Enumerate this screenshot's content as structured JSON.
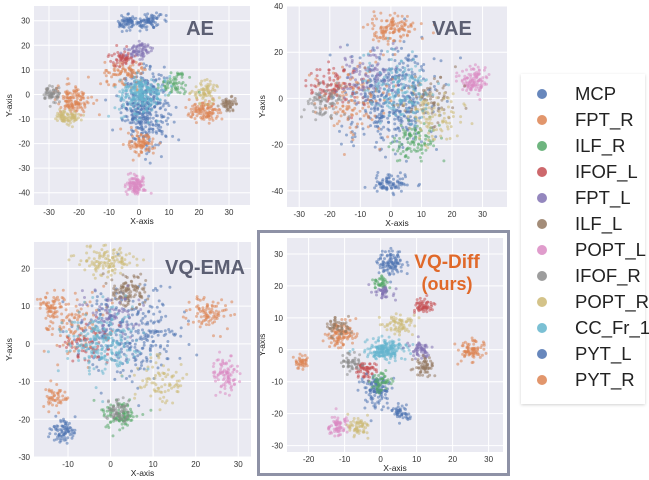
{
  "legend": {
    "entries": [
      {
        "label": "MCP",
        "color": "#4c72b0"
      },
      {
        "label": "FPT_R",
        "color": "#dd8452"
      },
      {
        "label": "ILF_R",
        "color": "#55a868"
      },
      {
        "label": "IFOF_L",
        "color": "#c44e52"
      },
      {
        "label": "FPT_L",
        "color": "#8172b3"
      },
      {
        "label": "ILF_L",
        "color": "#937860"
      },
      {
        "label": "POPT_L",
        "color": "#da8bc3"
      },
      {
        "label": "IFOF_R",
        "color": "#8c8c8c"
      },
      {
        "label": "POPT_R",
        "color": "#ccb974"
      },
      {
        "label": "CC_Fr_1",
        "color": "#64b5cd"
      },
      {
        "label": "PYT_L",
        "color": "#4c72b0"
      },
      {
        "label": "PYT_R",
        "color": "#dd8452"
      }
    ]
  },
  "chart_data": [
    {
      "type": "scatter",
      "title": "AE",
      "title_color": "#5c5f73",
      "xlabel": "X-axis",
      "ylabel": "Y-axis",
      "xlim": [
        -35,
        37
      ],
      "ylim": [
        -45,
        36
      ],
      "xticks": [
        -30,
        -20,
        -10,
        0,
        10,
        20,
        30
      ],
      "yticks": [
        -40,
        -30,
        -20,
        -10,
        0,
        10,
        20,
        30
      ],
      "grid": true,
      "clusters": [
        {
          "series": "MCP",
          "cx": 2,
          "cy": -5,
          "sx": 5,
          "sy": 10,
          "n": 380
        },
        {
          "series": "MCP",
          "cx": -4,
          "cy": 29,
          "sx": 2,
          "sy": 2,
          "n": 60
        },
        {
          "series": "PYT_L",
          "cx": 3,
          "cy": 30,
          "sx": 3,
          "sy": 2.5,
          "n": 80
        },
        {
          "series": "FPT_R",
          "cx": -22,
          "cy": -2,
          "sx": 4,
          "sy": 4,
          "n": 130
        },
        {
          "series": "FPT_R",
          "cx": 22,
          "cy": -7,
          "sx": 4,
          "sy": 3,
          "n": 110
        },
        {
          "series": "FPT_R",
          "cx": -5,
          "cy": 8,
          "sx": 5,
          "sy": 4,
          "n": 90
        },
        {
          "series": "PYT_R",
          "cx": 1,
          "cy": -20,
          "sx": 3,
          "sy": 3,
          "n": 90
        },
        {
          "series": "POPT_L",
          "cx": -1,
          "cy": -37,
          "sx": 2,
          "sy": 2.5,
          "n": 110
        },
        {
          "series": "POPT_R",
          "cx": -24,
          "cy": -9,
          "sx": 3,
          "sy": 2,
          "n": 80
        },
        {
          "series": "POPT_R",
          "cx": 22,
          "cy": 1,
          "sx": 3,
          "sy": 3,
          "n": 70
        },
        {
          "series": "ILF_L",
          "cx": 30,
          "cy": -4,
          "sx": 2,
          "sy": 2,
          "n": 50
        },
        {
          "series": "ILF_R",
          "cx": 12,
          "cy": 4,
          "sx": 3,
          "sy": 3,
          "n": 60
        },
        {
          "series": "IFOF_L",
          "cx": -5,
          "cy": 15,
          "sx": 3,
          "sy": 2,
          "n": 60
        },
        {
          "series": "FPT_L",
          "cx": 0,
          "cy": 18,
          "sx": 3,
          "sy": 2,
          "n": 70
        },
        {
          "series": "IFOF_R",
          "cx": -29,
          "cy": 0,
          "sx": 2,
          "sy": 2,
          "n": 60
        },
        {
          "series": "CC_Fr_1",
          "cx": 1,
          "cy": 0,
          "sx": 5,
          "sy": 5,
          "n": 220
        }
      ]
    },
    {
      "type": "scatter",
      "title": "VAE",
      "title_color": "#5c5f73",
      "xlabel": "X-axis",
      "ylabel": "Y-axis",
      "xlim": [
        -34,
        38
      ],
      "ylim": [
        -47,
        40
      ],
      "xticks": [
        -30,
        -20,
        -10,
        0,
        10,
        20,
        30
      ],
      "yticks": [
        -40,
        -20,
        0,
        20,
        40
      ],
      "grid": true,
      "clusters": [
        {
          "series": "MCP",
          "cx": 0,
          "cy": 0,
          "sx": 10,
          "sy": 14,
          "n": 420
        },
        {
          "series": "MCP",
          "cx": 0,
          "cy": -37,
          "sx": 4,
          "sy": 3,
          "n": 80
        },
        {
          "series": "FPT_R",
          "cx": 0,
          "cy": 30,
          "sx": 5,
          "sy": 4,
          "n": 120
        },
        {
          "series": "FPT_R",
          "cx": -12,
          "cy": 0,
          "sx": 8,
          "sy": 10,
          "n": 140
        },
        {
          "series": "POPT_L",
          "cx": 27,
          "cy": 8,
          "sx": 3,
          "sy": 4,
          "n": 110
        },
        {
          "series": "ILF_R",
          "cx": 8,
          "cy": -18,
          "sx": 5,
          "sy": 5,
          "n": 100
        },
        {
          "series": "IFOF_L",
          "cx": -18,
          "cy": 5,
          "sx": 6,
          "sy": 6,
          "n": 90
        },
        {
          "series": "FPT_L",
          "cx": -8,
          "cy": 10,
          "sx": 6,
          "sy": 8,
          "n": 90
        },
        {
          "series": "ILF_L",
          "cx": 12,
          "cy": 0,
          "sx": 6,
          "sy": 7,
          "n": 80
        },
        {
          "series": "IFOF_R",
          "cx": -22,
          "cy": -2,
          "sx": 5,
          "sy": 6,
          "n": 80
        },
        {
          "series": "POPT_R",
          "cx": 14,
          "cy": -8,
          "sx": 6,
          "sy": 8,
          "n": 100
        },
        {
          "series": "CC_Fr_1",
          "cx": 3,
          "cy": 5,
          "sx": 8,
          "sy": 10,
          "n": 150
        }
      ]
    },
    {
      "type": "scatter",
      "title": "VQ-EMA",
      "title_color": "#5c5f73",
      "xlabel": "X-axis",
      "ylabel": "Y-axis",
      "xlim": [
        -18,
        33
      ],
      "ylim": [
        -30,
        27
      ],
      "xticks": [
        -10,
        0,
        10,
        20,
        30
      ],
      "yticks": [
        -30,
        -20,
        -10,
        0,
        10,
        20
      ],
      "grid": true,
      "clusters": [
        {
          "series": "MCP",
          "cx": 5,
          "cy": 3,
          "sx": 8,
          "sy": 8,
          "n": 300
        },
        {
          "series": "MCP",
          "cx": -11,
          "cy": -23,
          "sx": 2,
          "sy": 2,
          "n": 80
        },
        {
          "series": "POPT_R",
          "cx": -1,
          "cy": 22,
          "sx": 4,
          "sy": 2.5,
          "n": 120
        },
        {
          "series": "ILF_L",
          "cx": 4,
          "cy": 14,
          "sx": 3,
          "sy": 3,
          "n": 110
        },
        {
          "series": "FPT_R",
          "cx": -10,
          "cy": 5,
          "sx": 5,
          "sy": 5,
          "n": 120
        },
        {
          "series": "FPT_R",
          "cx": 23,
          "cy": 8,
          "sx": 3,
          "sy": 3,
          "n": 90
        },
        {
          "series": "PYT_R",
          "cx": -14,
          "cy": 10,
          "sx": 2,
          "sy": 2,
          "n": 50
        },
        {
          "series": "POPT_L",
          "cx": 27,
          "cy": -8,
          "sx": 2,
          "sy": 3,
          "n": 90
        },
        {
          "series": "ILF_R",
          "cx": 2,
          "cy": -19,
          "sx": 3,
          "sy": 2.5,
          "n": 110
        },
        {
          "series": "IFOF_R",
          "cx": 2,
          "cy": -18,
          "sx": 2,
          "sy": 2,
          "n": 60
        },
        {
          "series": "IFOF_L",
          "cx": -5,
          "cy": 0,
          "sx": 4,
          "sy": 4,
          "n": 70
        },
        {
          "series": "FPT_L",
          "cx": 0,
          "cy": 8,
          "sx": 4,
          "sy": 4,
          "n": 70
        },
        {
          "series": "POPT_R",
          "cx": 12,
          "cy": -10,
          "sx": 4,
          "sy": 4,
          "n": 80
        },
        {
          "series": "CC_Fr_1",
          "cx": -2,
          "cy": 0,
          "sx": 6,
          "sy": 6,
          "n": 220
        },
        {
          "series": "FPT_R",
          "cx": -13,
          "cy": -14,
          "sx": 2,
          "sy": 2,
          "n": 50
        }
      ]
    },
    {
      "type": "scatter",
      "title": "VQ-Diff",
      "subtitle": "(ours)",
      "title_color": "#e0692a",
      "xlabel": "X-axis",
      "ylabel": "Y-axis",
      "xlim": [
        -26,
        34
      ],
      "ylim": [
        -32,
        35
      ],
      "xticks": [
        -20,
        -10,
        0,
        10,
        20,
        30
      ],
      "yticks": [
        -30,
        -20,
        -10,
        0,
        10,
        20,
        30
      ],
      "grid": true,
      "clusters": [
        {
          "series": "MCP",
          "cx": 3,
          "cy": 27,
          "sx": 2.5,
          "sy": 3,
          "n": 100
        },
        {
          "series": "ILF_R",
          "cx": 0,
          "cy": 21,
          "sx": 1.5,
          "sy": 1.5,
          "n": 40
        },
        {
          "series": "FPT_L",
          "cx": 1,
          "cy": 18,
          "sx": 2,
          "sy": 1.5,
          "n": 40
        },
        {
          "series": "IFOF_L",
          "cx": 12,
          "cy": 14,
          "sx": 2,
          "sy": 1.5,
          "n": 60
        },
        {
          "series": "FPT_R",
          "cx": -11,
          "cy": 5,
          "sx": 3,
          "sy": 3,
          "n": 100
        },
        {
          "series": "ILF_L",
          "cx": -12,
          "cy": 7,
          "sx": 2,
          "sy": 2,
          "n": 50
        },
        {
          "series": "FPT_R",
          "cx": 25,
          "cy": 0,
          "sx": 2.5,
          "sy": 2.5,
          "n": 80
        },
        {
          "series": "PYT_R",
          "cx": -22,
          "cy": -4,
          "sx": 1.5,
          "sy": 1.5,
          "n": 40
        },
        {
          "series": "POPT_R",
          "cx": 5,
          "cy": 8,
          "sx": 3,
          "sy": 2,
          "n": 70
        },
        {
          "series": "CC_Fr_1",
          "cx": 1,
          "cy": 0,
          "sx": 4,
          "sy": 2,
          "n": 200
        },
        {
          "series": "FPT_L",
          "cx": 11,
          "cy": 0,
          "sx": 2,
          "sy": 2,
          "n": 60
        },
        {
          "series": "ILF_L",
          "cx": 12,
          "cy": -5,
          "sx": 2,
          "sy": 2,
          "n": 60
        },
        {
          "series": "IFOF_L",
          "cx": -4,
          "cy": -6,
          "sx": 2,
          "sy": 2,
          "n": 60
        },
        {
          "series": "MCP",
          "cx": -1,
          "cy": -13,
          "sx": 2.5,
          "sy": 4,
          "n": 120
        },
        {
          "series": "ILF_R",
          "cx": 0,
          "cy": -10,
          "sx": 2,
          "sy": 2,
          "n": 50
        },
        {
          "series": "POPT_L",
          "cx": -12,
          "cy": -24,
          "sx": 2,
          "sy": 2,
          "n": 70
        },
        {
          "series": "POPT_R",
          "cx": -6,
          "cy": -24,
          "sx": 2,
          "sy": 2,
          "n": 60
        },
        {
          "series": "MCP",
          "cx": 5,
          "cy": -20,
          "sx": 2,
          "sy": 2,
          "n": 50
        },
        {
          "series": "IFOF_R",
          "cx": -8,
          "cy": -4,
          "sx": 2,
          "sy": 2,
          "n": 50
        }
      ]
    }
  ]
}
